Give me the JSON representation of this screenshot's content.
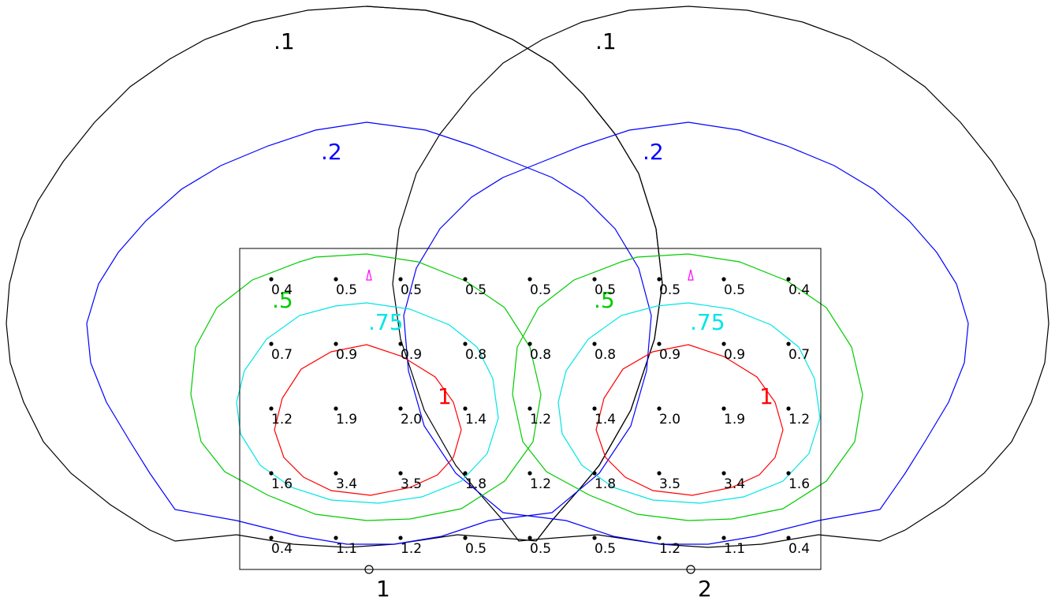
{
  "diagram": {
    "type": "isoline_lighting_plan",
    "contour_labels": [
      {
        "text": ".1",
        "color": "#000000"
      },
      {
        "text": ".1",
        "color": "#000000"
      },
      {
        "text": ".2",
        "color": "#0000ff"
      },
      {
        "text": ".2",
        "color": "#0000ff"
      },
      {
        "text": ".5",
        "color": "#00cc00"
      },
      {
        "text": ".5",
        "color": "#00cc00"
      },
      {
        "text": ".75",
        "color": "#00e5e5"
      },
      {
        "text": ".75",
        "color": "#00e5e5"
      },
      {
        "text": "1",
        "color": "#ff0000"
      },
      {
        "text": "1",
        "color": "#ff0000"
      }
    ],
    "grid_values": [
      [
        "0.4",
        "0.5",
        "0.5",
        "0.5",
        "0.5",
        "0.5",
        "0.5",
        "0.5",
        "0.4"
      ],
      [
        "0.7",
        "0.9",
        "0.9",
        "0.8",
        "0.8",
        "0.8",
        "0.9",
        "0.9",
        "0.7"
      ],
      [
        "1.2",
        "1.9",
        "2.0",
        "1.4",
        "1.2",
        "1.4",
        "2.0",
        "1.9",
        "1.2"
      ],
      [
        "1.6",
        "3.4",
        "3.5",
        "1.8",
        "1.2",
        "1.8",
        "3.5",
        "3.4",
        "1.6"
      ],
      [
        "0.4",
        "1.1",
        "1.2",
        "0.5",
        "0.5",
        "0.5",
        "1.2",
        "1.1",
        "0.4"
      ]
    ],
    "poles": [
      {
        "label": "1"
      },
      {
        "label": "2"
      }
    ],
    "colors": {
      "c01": "#000000",
      "c02": "#0000ff",
      "c05": "#00cc00",
      "c075": "#00e5e5",
      "c1": "#ff0000",
      "aim": "#ff00ff"
    }
  }
}
